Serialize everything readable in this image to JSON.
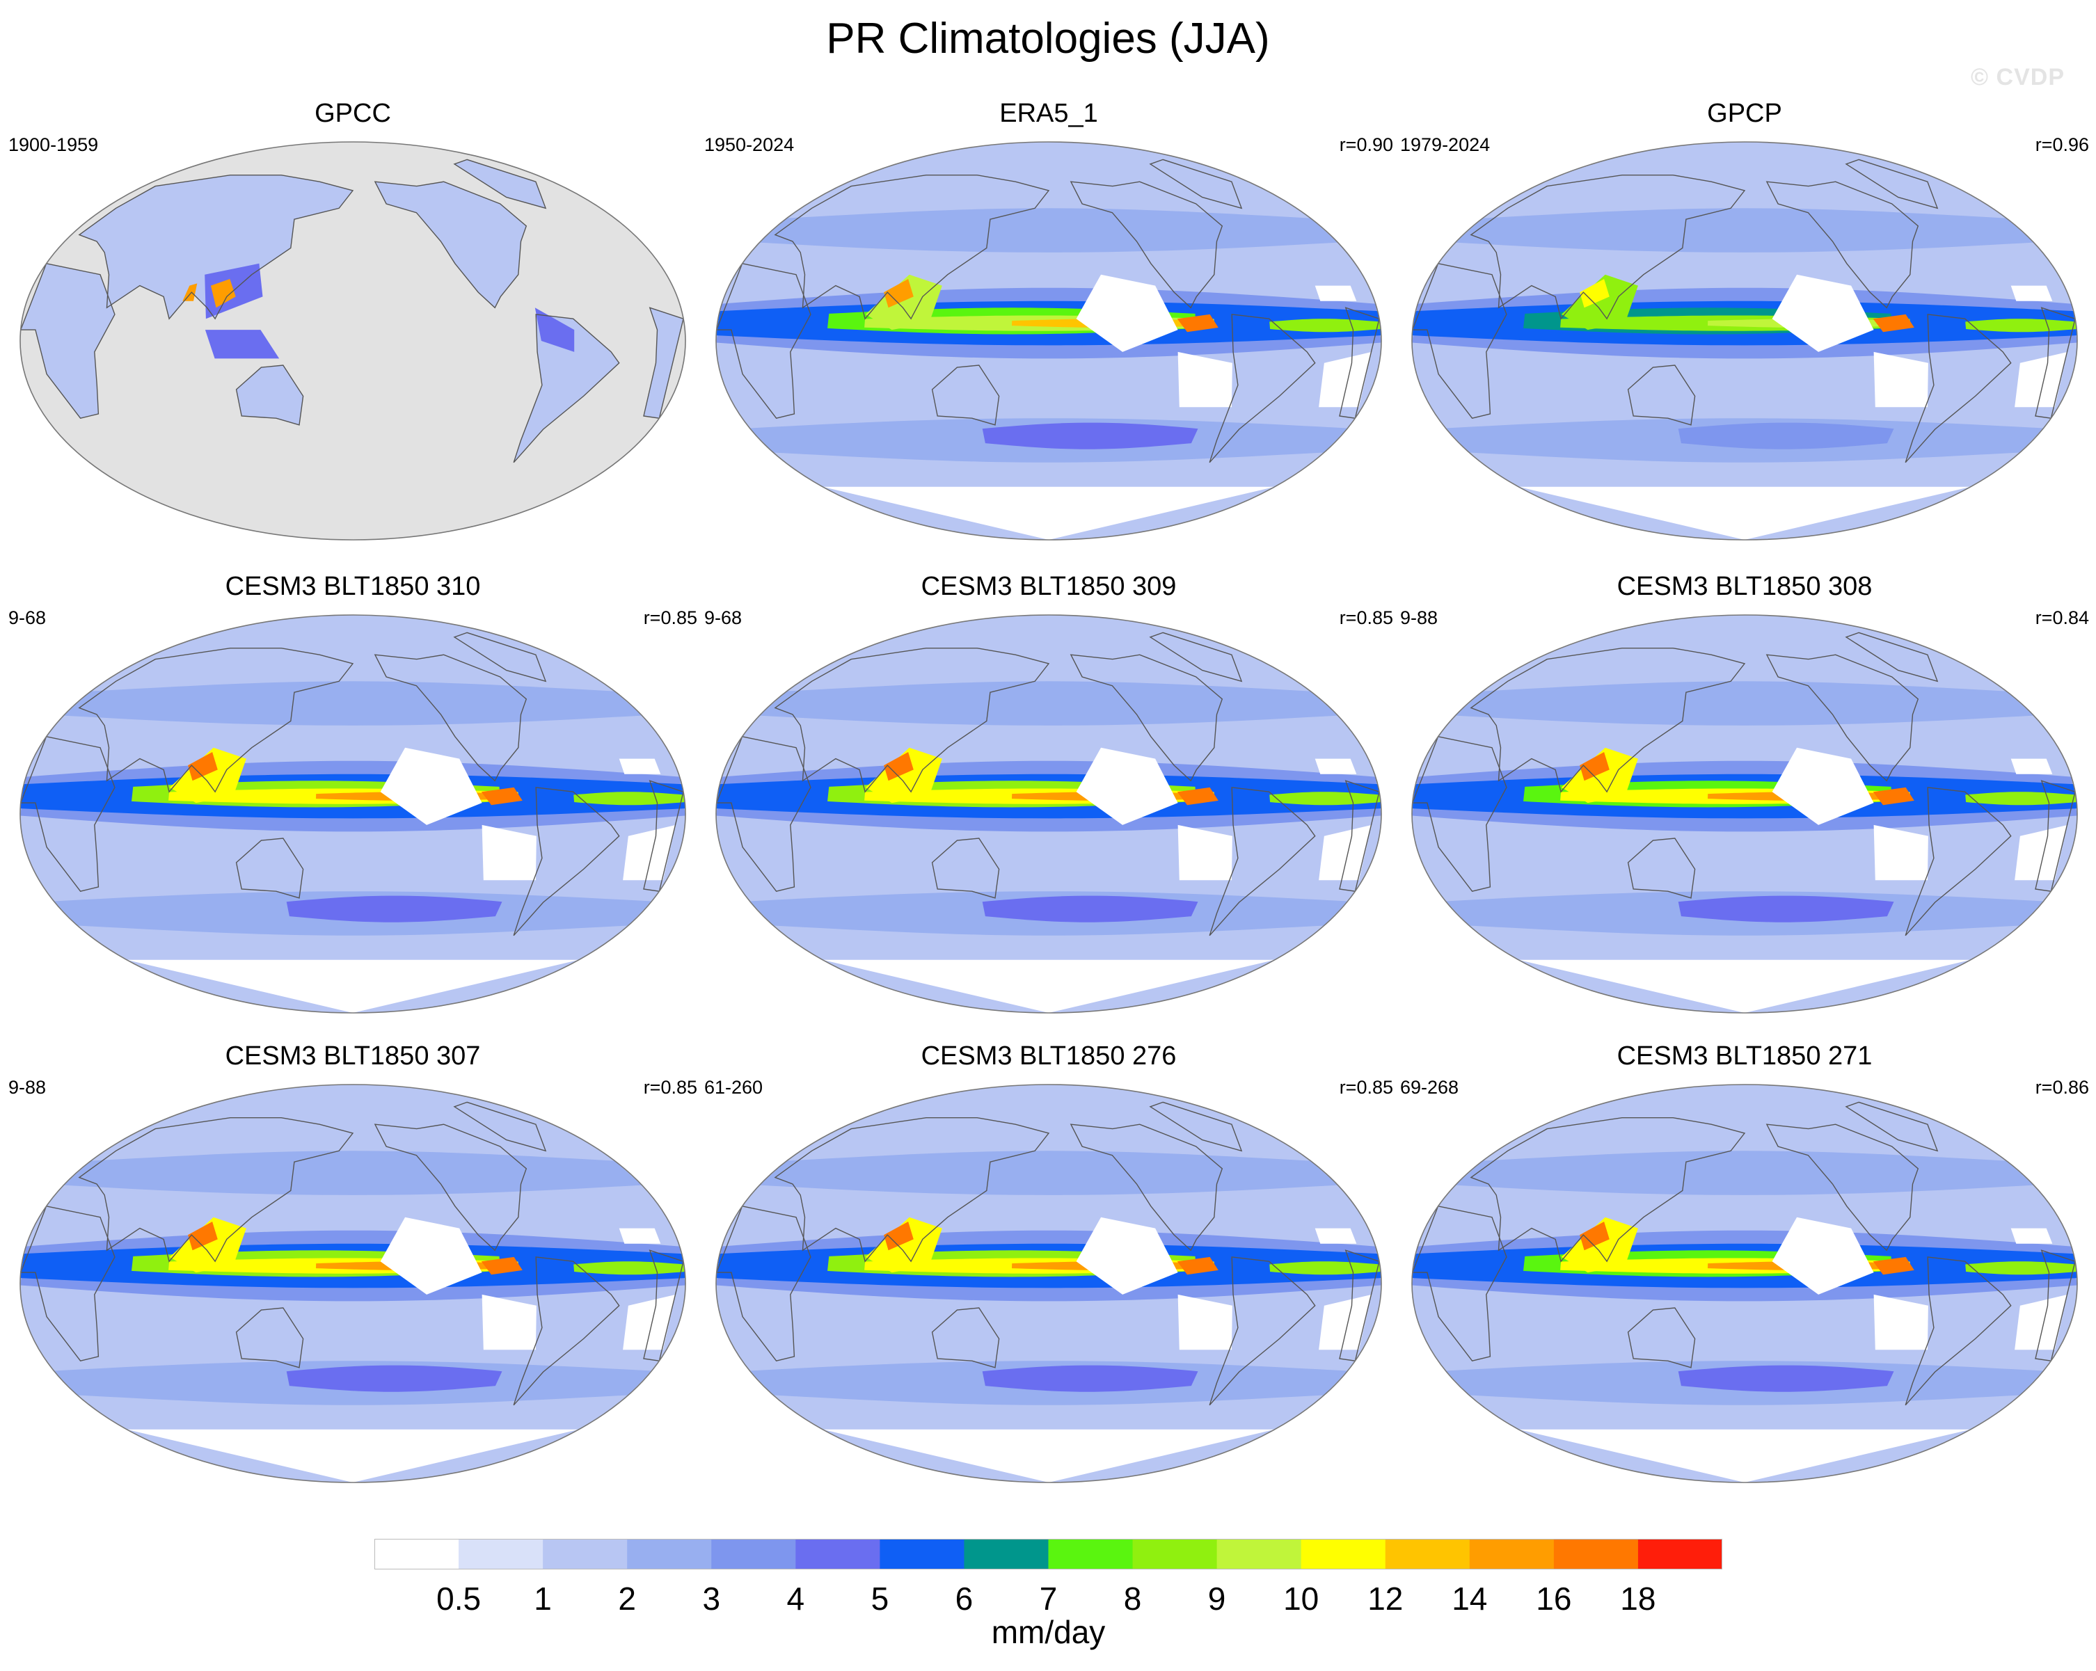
{
  "title": "PR Climatologies (JJA)",
  "watermark": "© CVDP",
  "chart_data": {
    "type": "heatmap",
    "variable": "PR",
    "season": "JJA",
    "units": "mm/day",
    "projection": "robinson",
    "map_center": "Pacific (dateline)",
    "levels": [
      "0.5",
      "1",
      "2",
      "3",
      "4",
      "5",
      "6",
      "7",
      "8",
      "9",
      "10",
      "12",
      "14",
      "16",
      "18"
    ],
    "colors": [
      "#ffffff",
      "#d9e1f9",
      "#b8c6f3",
      "#98aff0",
      "#7e96ee",
      "#6a6ef0",
      "#0f5ff5",
      "#00968c",
      "#5af50f",
      "#90f00f",
      "#c0f53a",
      "#ffff00",
      "#ffc400",
      "#ff9d00",
      "#ff7800",
      "#ff1e0a"
    ],
    "panels": [
      {
        "title": "GPCC",
        "period": "1900-1959",
        "r": "",
        "coverage": "land-only",
        "scale": 0.85
      },
      {
        "title": "ERA5_1",
        "period": "1950-2024",
        "r": "r=0.90",
        "coverage": "global",
        "scale": 1.0
      },
      {
        "title": "GPCP",
        "period": "1979-2024",
        "r": "r=0.96",
        "coverage": "global",
        "scale": 0.85
      },
      {
        "title": "CESM3 BLT1850 310",
        "period": "9-68",
        "r": "r=0.85",
        "coverage": "global",
        "scale": 1.08
      },
      {
        "title": "CESM3 BLT1850 309",
        "period": "9-68",
        "r": "r=0.85",
        "coverage": "global",
        "scale": 1.08
      },
      {
        "title": "CESM3 BLT1850 308",
        "period": "9-88",
        "r": "r=0.84",
        "coverage": "global",
        "scale": 1.06
      },
      {
        "title": "CESM3 BLT1850 307",
        "period": "9-88",
        "r": "r=0.85",
        "coverage": "global",
        "scale": 1.07
      },
      {
        "title": "CESM3 BLT1850 276",
        "period": "61-260",
        "r": "r=0.85",
        "coverage": "global",
        "scale": 1.07
      },
      {
        "title": "CESM3 BLT1850 271",
        "period": "69-268",
        "r": "r=0.86",
        "coverage": "global",
        "scale": 1.06
      }
    ]
  }
}
